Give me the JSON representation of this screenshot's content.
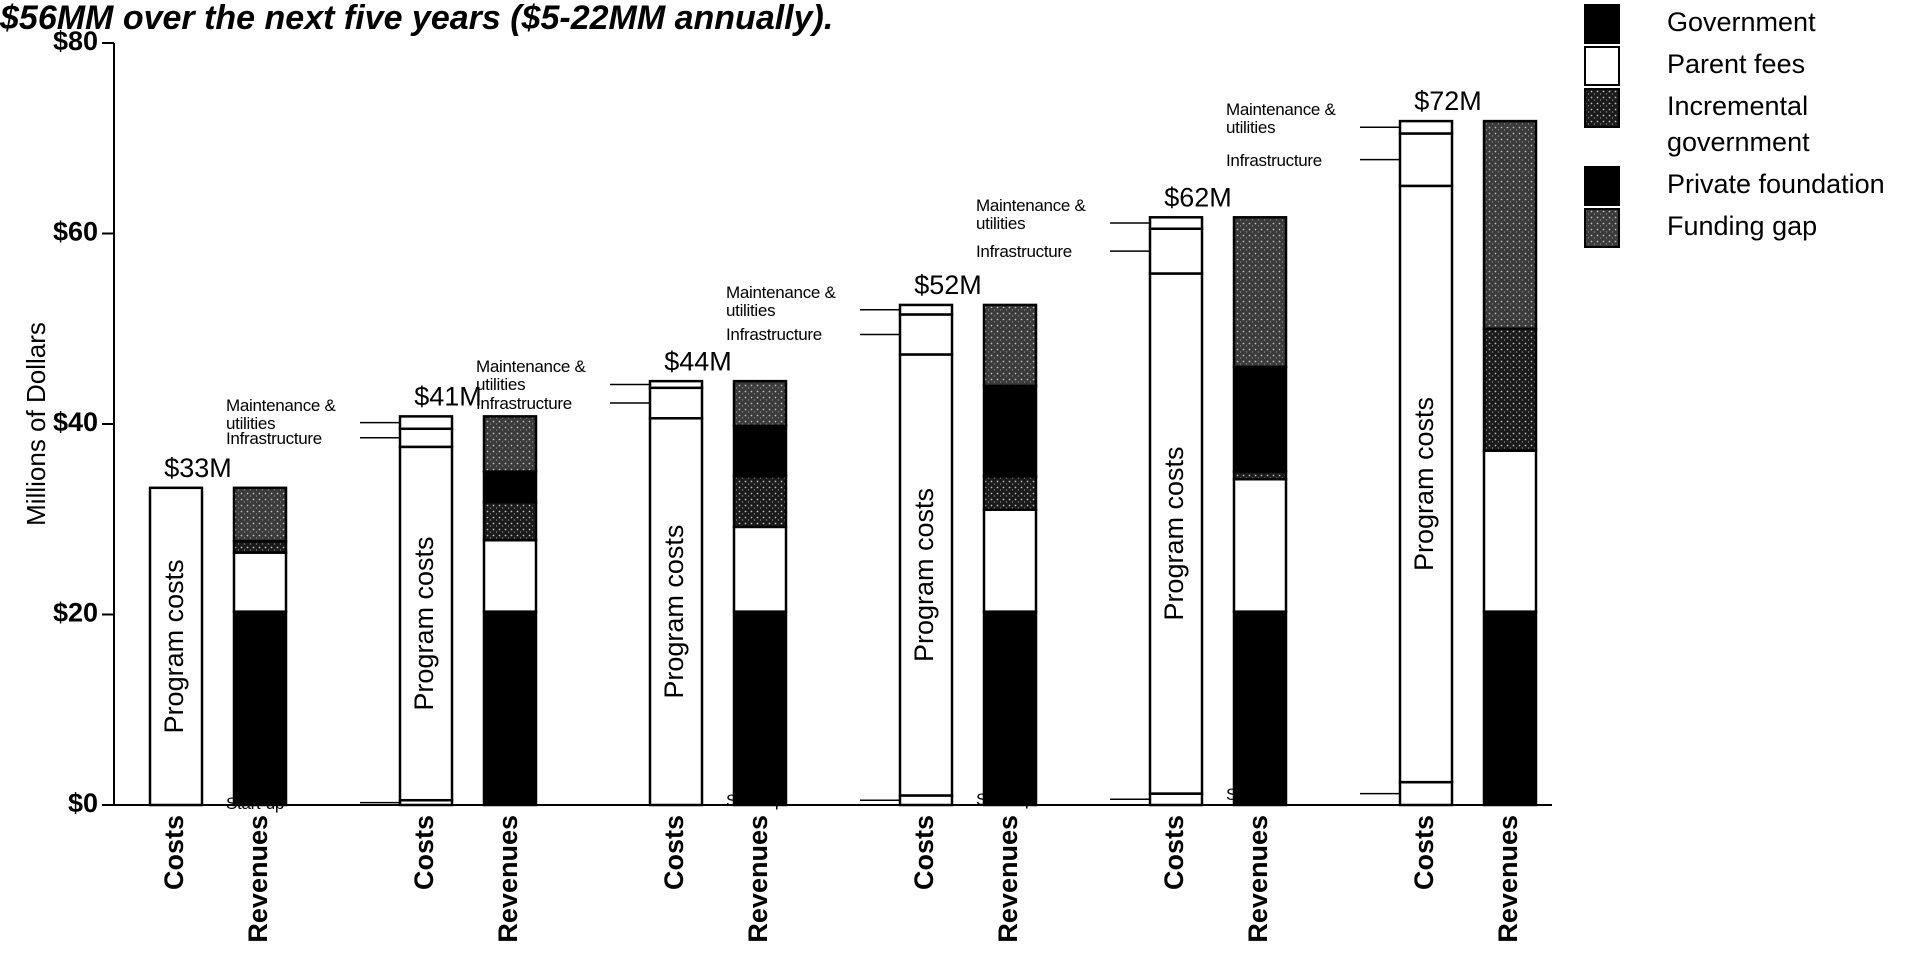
{
  "chart_data": {
    "type": "stacked_bar",
    "title": "$56MM over the next five years ($5-22MM annually).",
    "y_label": "Millions of Dollars",
    "categories": [
      "Costs",
      "Revenues",
      "Costs",
      "Revenues",
      "Costs",
      "Revenues",
      "Costs",
      "Revenues",
      "Costs",
      "Revenues",
      "Costs",
      "Revenues"
    ],
    "ylim": [
      0,
      80
    ],
    "yticks": [
      {
        "value": 0,
        "label": "$0"
      },
      {
        "value": 20,
        "label": "$20"
      },
      {
        "value": 40,
        "label": "$40"
      },
      {
        "value": 60,
        "label": "$60"
      },
      {
        "value": 80,
        "label": "$80"
      }
    ],
    "series": [
      {
        "name": "Start-up",
        "color": "#ffffff",
        "annotate": true,
        "legend": false,
        "values": [
          null,
          null,
          0.5,
          null,
          null,
          null,
          1.0,
          null,
          1.2,
          null,
          2.4,
          null
        ]
      },
      {
        "name": "Program costs",
        "color": "#ffffff",
        "inside_label": true,
        "legend": false,
        "values": [
          33.3,
          null,
          37.1,
          null,
          40.6,
          null,
          46.3,
          null,
          54.6,
          null,
          62.6,
          null
        ]
      },
      {
        "name": "Infrastructure",
        "color": "#ffffff",
        "annotate": true,
        "legend": false,
        "values": [
          null,
          null,
          1.9,
          null,
          3.2,
          null,
          4.2,
          null,
          4.7,
          null,
          5.5,
          null
        ]
      },
      {
        "name": "Maintenance & utilities",
        "color": "#ffffff",
        "annotate": true,
        "legend": false,
        "values": [
          null,
          null,
          1.3,
          null,
          0.7,
          null,
          1.0,
          null,
          1.2,
          null,
          1.3,
          null
        ]
      },
      {
        "name": "Government",
        "color": "#000000",
        "legend": true,
        "values": [
          null,
          20.3,
          null,
          20.3,
          null,
          20.3,
          null,
          20.3,
          null,
          20.3,
          null,
          20.3
        ]
      },
      {
        "name": "Parent fees",
        "color": "#ffffff",
        "legend": true,
        "values": [
          null,
          6.2,
          null,
          7.5,
          null,
          8.9,
          null,
          10.7,
          null,
          13.9,
          null,
          16.9
        ]
      },
      {
        "name": "Incremental government",
        "color": "#1a1a1a",
        "pattern": true,
        "legend": true,
        "values": [
          null,
          1.2,
          null,
          4.0,
          null,
          5.3,
          null,
          3.5,
          null,
          0.8,
          null,
          12.8
        ]
      },
      {
        "name": "Private foundation",
        "color": "#000000",
        "legend": true,
        "values": [
          null,
          null,
          null,
          3.2,
          null,
          5.3,
          null,
          9.5,
          null,
          11.0,
          null,
          null
        ]
      },
      {
        "name": "Funding gap",
        "color": "#3a3a3a",
        "pattern": true,
        "legend": true,
        "values": [
          null,
          5.6,
          null,
          5.8,
          null,
          4.7,
          null,
          8.5,
          null,
          15.7,
          null,
          21.8
        ]
      }
    ],
    "totals": {
      "values": [
        33.3,
        40.8,
        44.5,
        52.5,
        61.7,
        71.8
      ],
      "value_labels": [
        "$33M",
        "$41M",
        "$44M",
        "$52M",
        "$62M",
        "$72M"
      ]
    }
  }
}
